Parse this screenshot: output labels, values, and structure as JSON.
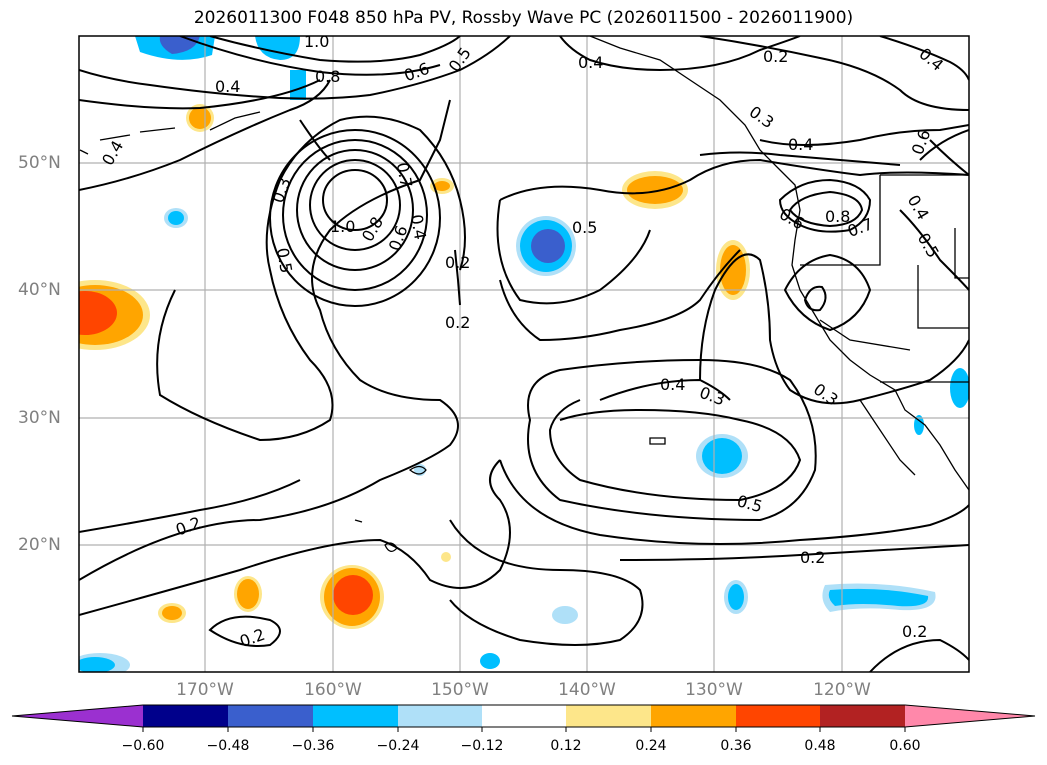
{
  "title": "2026011300 F048 850 hPa PV, Rossby Wave PC (2026011500 - 2026011900)",
  "lat_labels": [
    "50°N",
    "40°N",
    "30°N",
    "20°N"
  ],
  "lon_labels": [
    "170°W",
    "160°W",
    "150°W",
    "140°W",
    "130°W",
    "120°W"
  ],
  "colorbar": {
    "ticks": [
      "−0.60",
      "−0.48",
      "−0.36",
      "−0.24",
      "−0.12",
      "0.12",
      "0.24",
      "0.36",
      "0.48",
      "0.60"
    ],
    "colors": [
      "#9b30d0",
      "#00008b",
      "#3a5fcd",
      "#00bfff",
      "#afe0f8",
      "#ffffff",
      "#fde68a",
      "#ffa500",
      "#ff4500",
      "#b22222",
      "#ff88aa"
    ]
  },
  "contour_labels": [
    "1.0",
    "0.8",
    "0.6",
    "0.5",
    "0.4",
    "0.4",
    "0.3",
    "0.5",
    "1.0",
    "0.8",
    "0.6",
    "0.7",
    "0.4",
    "0.2",
    "0.2",
    "0.5",
    "0.4",
    "0.2",
    "0.3",
    "0.4",
    "0.6",
    "0.8",
    "0.7",
    "0.6",
    "0.5",
    "0.4",
    "0.4",
    "0.3",
    "0.3",
    "0.5",
    "0.2",
    "0.2",
    "0.2",
    "0.2",
    "0.4"
  ]
}
